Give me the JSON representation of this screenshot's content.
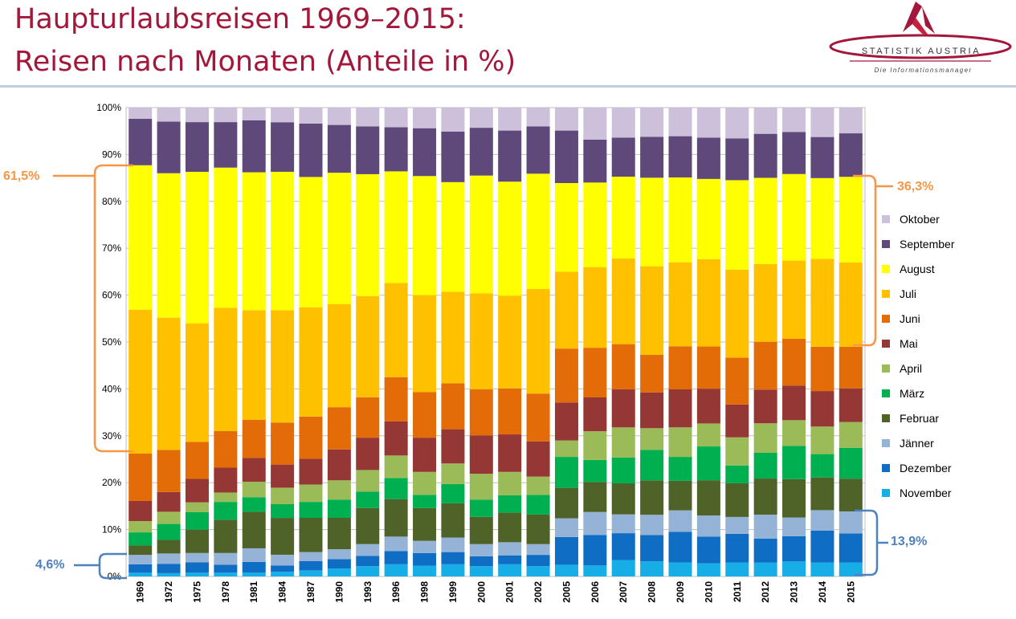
{
  "title": {
    "line1": "Haupturlaubsreisen 1969–2015:",
    "line2": "Reisen nach Monaten (Anteile in %)"
  },
  "logo": {
    "name": "STATISTIK AUSTRIA",
    "tagline": "Die Informationsmanager",
    "color": "#a3173a"
  },
  "annotations": {
    "left_top": "61,5%",
    "left_bottom": "4,6%",
    "right_top": "36,3%",
    "right_bottom": "13,9%",
    "orange": "#f79646",
    "blue": "#4f81bd"
  },
  "chart_data": {
    "type": "stacked-bar-100",
    "title": "",
    "xlabel": "",
    "ylabel": "",
    "ylim": [
      0,
      100
    ],
    "yticks": [
      "0%",
      "10%",
      "20%",
      "30%",
      "40%",
      "50%",
      "60%",
      "70%",
      "80%",
      "90%",
      "100%"
    ],
    "grid": true,
    "legend_position": "right",
    "categories": [
      "1969",
      "1972",
      "1975",
      "1978",
      "1981",
      "1984",
      "1987",
      "1990",
      "1993",
      "1996",
      "1998",
      "1999",
      "2000",
      "2001",
      "2002",
      "2005",
      "2006",
      "2007",
      "2008",
      "2009",
      "2010",
      "2011",
      "2012",
      "2013",
      "2014",
      "2015"
    ],
    "series": [
      {
        "name": "November",
        "color": "#17aee8",
        "values": [
          0.8,
          0.7,
          0.8,
          0.8,
          0.8,
          1.0,
          1.3,
          1.7,
          2.2,
          2.6,
          2.3,
          2.6,
          2.2,
          2.6,
          2.2,
          2.5,
          2.3,
          3.5,
          3.2,
          3.0,
          2.8,
          3.0,
          3.0,
          3.2,
          3.0,
          3.0
        ]
      },
      {
        "name": "Dezember",
        "color": "#0f6dc4",
        "values": [
          1.8,
          2.0,
          2.2,
          1.7,
          2.3,
          1.3,
          2.0,
          2.0,
          2.2,
          2.8,
          2.7,
          2.6,
          2.1,
          1.9,
          2.4,
          5.9,
          6.4,
          5.7,
          5.6,
          6.5,
          5.7,
          6.1,
          5.1,
          5.4,
          6.8,
          6.2
        ]
      },
      {
        "name": "Jänner",
        "color": "#95b3d7",
        "values": [
          2.0,
          2.2,
          2.0,
          2.5,
          2.9,
          2.3,
          1.9,
          2.1,
          2.5,
          3.1,
          2.6,
          3.1,
          2.6,
          2.8,
          2.3,
          4.0,
          4.8,
          4.0,
          4.3,
          4.6,
          4.5,
          3.6,
          5.1,
          4.0,
          4.4,
          4.7
        ]
      },
      {
        "name": "Februar",
        "color": "#4f6228",
        "values": [
          2.0,
          2.9,
          5.0,
          7.1,
          7.8,
          7.8,
          7.3,
          6.7,
          7.7,
          8.0,
          7.0,
          7.3,
          5.8,
          6.3,
          6.3,
          6.5,
          6.3,
          6.6,
          7.3,
          6.3,
          7.5,
          7.2,
          7.7,
          8.2,
          7.0,
          7.0
        ]
      },
      {
        "name": "März",
        "color": "#00b050",
        "values": [
          2.8,
          3.4,
          3.7,
          3.8,
          3.1,
          2.9,
          3.4,
          3.9,
          3.5,
          4.5,
          2.8,
          4.1,
          3.7,
          3.7,
          4.2,
          6.6,
          4.6,
          5.5,
          6.5,
          5.1,
          7.2,
          3.8,
          5.5,
          7.1,
          5.0,
          6.6
        ]
      },
      {
        "name": "April",
        "color": "#9bbb59",
        "values": [
          2.4,
          2.6,
          2.1,
          2.0,
          3.3,
          3.5,
          3.7,
          4.1,
          4.6,
          4.8,
          4.9,
          4.4,
          5.5,
          5.0,
          3.9,
          3.5,
          6.0,
          6.4,
          4.6,
          6.3,
          4.9,
          6.0,
          6.3,
          5.5,
          5.9,
          5.5
        ]
      },
      {
        "name": "Mai",
        "color": "#953735",
        "values": [
          4.3,
          4.2,
          5.0,
          5.3,
          5.1,
          4.9,
          5.5,
          6.6,
          6.9,
          7.3,
          7.3,
          7.3,
          8.2,
          8.0,
          7.5,
          8.1,
          7.1,
          8.1,
          7.6,
          8.1,
          7.4,
          7.0,
          7.2,
          7.4,
          7.6,
          7.2
        ]
      },
      {
        "name": "Juni",
        "color": "#e36c09",
        "values": [
          10.1,
          9.0,
          7.9,
          7.8,
          8.1,
          8.9,
          9.0,
          9.0,
          8.6,
          9.4,
          9.7,
          9.8,
          9.8,
          9.8,
          10.2,
          11.5,
          10.4,
          9.6,
          8.0,
          9.2,
          9.0,
          10.0,
          10.2,
          10.0,
          9.5,
          8.9
        ]
      },
      {
        "name": "Juli",
        "color": "#ffc000",
        "values": [
          30.7,
          28.2,
          25.3,
          26.3,
          23.4,
          23.8,
          23.3,
          22.0,
          21.6,
          20.1,
          20.7,
          19.5,
          20.5,
          19.8,
          22.3,
          16.4,
          16.9,
          18.2,
          18.8,
          17.9,
          18.6,
          18.8,
          16.6,
          16.7,
          18.8,
          18.0
        ]
      },
      {
        "name": "August",
        "color": "#ffff00",
        "values": [
          30.8,
          30.8,
          32.3,
          29.9,
          29.4,
          29.3,
          27.8,
          28.0,
          26.0,
          23.8,
          25.4,
          23.4,
          25.1,
          24.3,
          24.6,
          18.9,
          17.7,
          17.4,
          18.8,
          18.1,
          17.1,
          19.1,
          18.4,
          18.5,
          17.3,
          18.3
        ]
      },
      {
        "name": "September",
        "color": "#5f497a",
        "values": [
          9.9,
          11.0,
          10.6,
          9.7,
          11.1,
          10.5,
          11.4,
          10.2,
          10.2,
          9.4,
          10.2,
          10.8,
          10.2,
          10.9,
          10.1,
          11.2,
          9.0,
          8.3,
          8.7,
          8.8,
          8.8,
          8.9,
          9.4,
          9.0,
          8.8,
          9.3
        ]
      },
      {
        "name": "Oktober",
        "color": "#ccc0da",
        "values": [
          2.4,
          3.0,
          3.1,
          3.1,
          2.7,
          3.1,
          3.4,
          3.7,
          4.0,
          4.2,
          4.4,
          5.1,
          4.3,
          4.9,
          4.0,
          4.9,
          6.7,
          6.4,
          6.2,
          6.1,
          6.4,
          6.6,
          5.6,
          5.2,
          6.3,
          5.5
        ]
      }
    ]
  }
}
